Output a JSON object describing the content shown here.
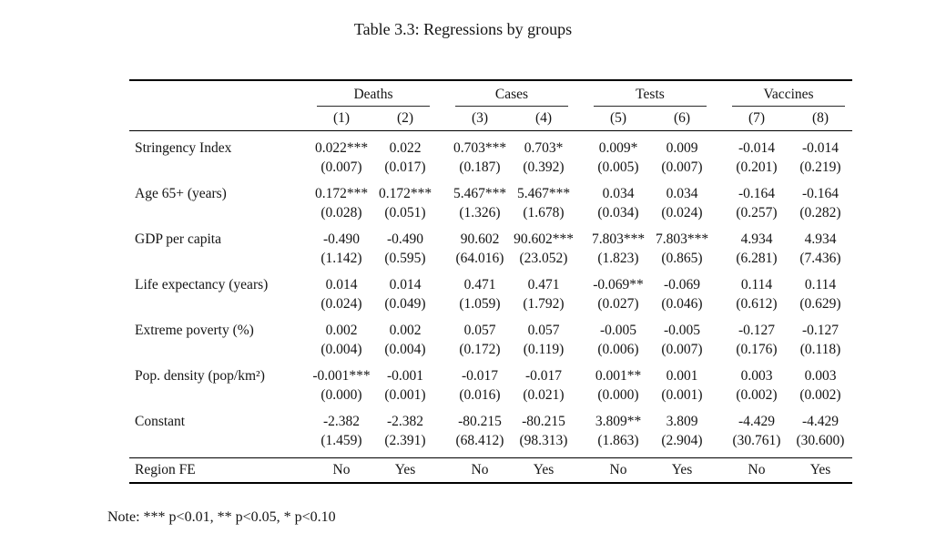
{
  "page": {
    "title": "Table 3.3: Regressions by groups",
    "note": "Note: *** p<0.01, ** p<0.05, * p<0.10"
  },
  "colors": {
    "background": "#ffffff",
    "text": "#141414",
    "rule": "#000000"
  },
  "table": {
    "groups": [
      {
        "label": "Deaths",
        "cols": [
          "(1)",
          "(2)"
        ]
      },
      {
        "label": "Cases",
        "cols": [
          "(3)",
          "(4)"
        ]
      },
      {
        "label": "Tests",
        "cols": [
          "(5)",
          "(6)"
        ]
      },
      {
        "label": "Vaccines",
        "cols": [
          "(7)",
          "(8)"
        ]
      }
    ],
    "rows": [
      {
        "label": "Stringency Index",
        "coefs": [
          "0.022***",
          "0.022",
          "0.703***",
          "0.703*",
          "0.009*",
          "0.009",
          "-0.014",
          "-0.014"
        ],
        "ses": [
          "(0.007)",
          "(0.017)",
          "(0.187)",
          "(0.392)",
          "(0.005)",
          "(0.007)",
          "(0.201)",
          "(0.219)"
        ]
      },
      {
        "label": "Age 65+ (years)",
        "coefs": [
          "0.172***",
          "0.172***",
          "5.467***",
          "5.467***",
          "0.034",
          "0.034",
          "-0.164",
          "-0.164"
        ],
        "ses": [
          "(0.028)",
          "(0.051)",
          "(1.326)",
          "(1.678)",
          "(0.034)",
          "(0.024)",
          "(0.257)",
          "(0.282)"
        ]
      },
      {
        "label": "GDP per capita",
        "coefs": [
          "-0.490",
          "-0.490",
          "90.602",
          "90.602***",
          "7.803***",
          "7.803***",
          "4.934",
          "4.934"
        ],
        "ses": [
          "(1.142)",
          "(0.595)",
          "(64.016)",
          "(23.052)",
          "(1.823)",
          "(0.865)",
          "(6.281)",
          "(7.436)"
        ]
      },
      {
        "label": "Life expectancy (years)",
        "coefs": [
          "0.014",
          "0.014",
          "0.471",
          "0.471",
          "-0.069**",
          "-0.069",
          "0.114",
          "0.114"
        ],
        "ses": [
          "(0.024)",
          "(0.049)",
          "(1.059)",
          "(1.792)",
          "(0.027)",
          "(0.046)",
          "(0.612)",
          "(0.629)"
        ]
      },
      {
        "label": "Extreme poverty (%)",
        "coefs": [
          "0.002",
          "0.002",
          "0.057",
          "0.057",
          "-0.005",
          "-0.005",
          "-0.127",
          "-0.127"
        ],
        "ses": [
          "(0.004)",
          "(0.004)",
          "(0.172)",
          "(0.119)",
          "(0.006)",
          "(0.007)",
          "(0.176)",
          "(0.118)"
        ]
      },
      {
        "label": "Pop. density (pop/km²)",
        "coefs": [
          "-0.001***",
          "-0.001",
          "-0.017",
          "-0.017",
          "0.001**",
          "0.001",
          "0.003",
          "0.003"
        ],
        "ses": [
          "(0.000)",
          "(0.001)",
          "(0.016)",
          "(0.021)",
          "(0.000)",
          "(0.001)",
          "(0.002)",
          "(0.002)"
        ]
      },
      {
        "label": "Constant",
        "coefs": [
          "-2.382",
          "-2.382",
          "-80.215",
          "-80.215",
          "3.809**",
          "3.809",
          "-4.429",
          "-4.429"
        ],
        "ses": [
          "(1.459)",
          "(2.391)",
          "(68.412)",
          "(98.313)",
          "(1.863)",
          "(2.904)",
          "(30.761)",
          "(30.600)"
        ]
      }
    ],
    "footer": {
      "label": "Region FE",
      "values": [
        "No",
        "Yes",
        "No",
        "Yes",
        "No",
        "Yes",
        "No",
        "Yes"
      ]
    }
  }
}
